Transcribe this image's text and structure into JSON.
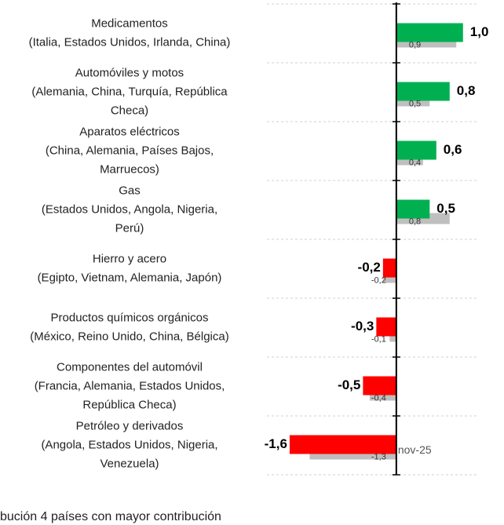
{
  "chart_data": {
    "type": "bar",
    "orientation": "horizontal",
    "categories": [
      "Medicamentos\n(Italia, Estados Unidos, Irlanda, China)",
      "Automóviles y motos\n(Alemania, China, Turquía, República\nCheca)",
      "Aparatos eléctricos\n(China, Alemania, Países Bajos,\nMarruecos)",
      "Gas\n(Estados Unidos, Angola, Nigeria,\nPerú)",
      "Hierro y acero\n(Egipto, Vietnam, Alemania, Japón)",
      "Productos químicos orgánicos\n(México, Reino Unido, China, Bélgica)",
      "Componentes del automóvil\n(Francia, Alemania, Estados Unidos,\nRepública Checa)",
      "Petróleo y derivados\n(Angola, Estados Unidos, Nigeria,\nVenezuela)"
    ],
    "series": [
      {
        "color_positive": "#00b050",
        "color_negative": "#ff0000",
        "values": [
          1.0,
          0.8,
          0.6,
          0.5,
          -0.2,
          -0.3,
          -0.5,
          -1.6
        ],
        "value_labels": [
          "1,0",
          "0,8",
          "0,6",
          "0,5",
          "-0,2",
          "-0,3",
          "-0,5",
          "-1,6"
        ]
      },
      {
        "color": "#bfbfbf",
        "values": [
          0.9,
          0.5,
          0.4,
          0.8,
          -0.2,
          -0.1,
          -0.4,
          -1.3
        ],
        "value_labels": [
          "0,9",
          "0,5",
          "0,4",
          "0,8",
          "-0,2",
          "-0,1",
          "-0,4",
          "-1,3"
        ]
      }
    ],
    "xlim": [
      -1.67,
      1.25
    ],
    "axis_label": "nov-25",
    "footnote": "bución 4 países con mayor contribución"
  }
}
